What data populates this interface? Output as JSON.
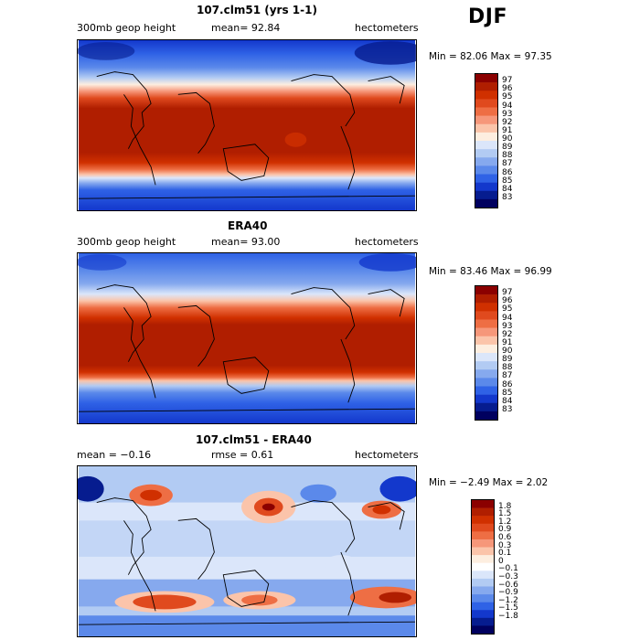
{
  "season": "DJF",
  "panels": [
    {
      "title": "107.clm51 (yrs 1-1)",
      "field_label": "300mb geop height",
      "mean_text": "mean=  92.84",
      "units": "hectometers",
      "min_max_text": "Min =  82.06 Max =  97.35",
      "colorbar_labels": [
        "97",
        "96",
        "95",
        "94",
        "93",
        "92",
        "91",
        "90",
        "89",
        "88",
        "87",
        "86",
        "85",
        "84",
        "83"
      ]
    },
    {
      "title": "ERA40",
      "field_label": "300mb geop height",
      "mean_text": "mean=  93.00",
      "units": "hectometers",
      "min_max_text": "Min =  83.46 Max =  96.99",
      "colorbar_labels": [
        "97",
        "96",
        "95",
        "94",
        "93",
        "92",
        "91",
        "90",
        "89",
        "88",
        "87",
        "86",
        "85",
        "84",
        "83"
      ]
    },
    {
      "title": "107.clm51 - ERA40",
      "field_label": "mean =  −0.16",
      "mean_text": "rmse =   0.61",
      "units": "hectometers",
      "min_max_text": "Min =  −2.49 Max =   2.02",
      "colorbar_labels": [
        "1.8",
        "1.5",
        "1.2",
        "0.9",
        "0.6",
        "0.3",
        "0.1",
        "0",
        "−0.1",
        "−0.3",
        "−0.6",
        "−0.9",
        "−1.2",
        "−1.5",
        "−1.8"
      ]
    }
  ],
  "colors": {
    "abs_scale": [
      "#8b0000",
      "#b01e00",
      "#d03000",
      "#e04a1e",
      "#ee6e44",
      "#f6977a",
      "#fbc4aa",
      "#fdeee0",
      "#dbe6fa",
      "#b2cbf3",
      "#86a9ee",
      "#5b89ea",
      "#2f62e6",
      "#1338cc",
      "#061c8f",
      "#00005f"
    ],
    "diff_scale": [
      "#8b0000",
      "#b01e00",
      "#d03000",
      "#e04a1e",
      "#ee6e44",
      "#f6977a",
      "#fbc4aa",
      "#fdeee0",
      "#ffffff",
      "#dbe6fa",
      "#b2cbf3",
      "#86a9ee",
      "#5b89ea",
      "#2f62e6",
      "#1338cc",
      "#061c8f",
      "#00005f"
    ]
  }
}
